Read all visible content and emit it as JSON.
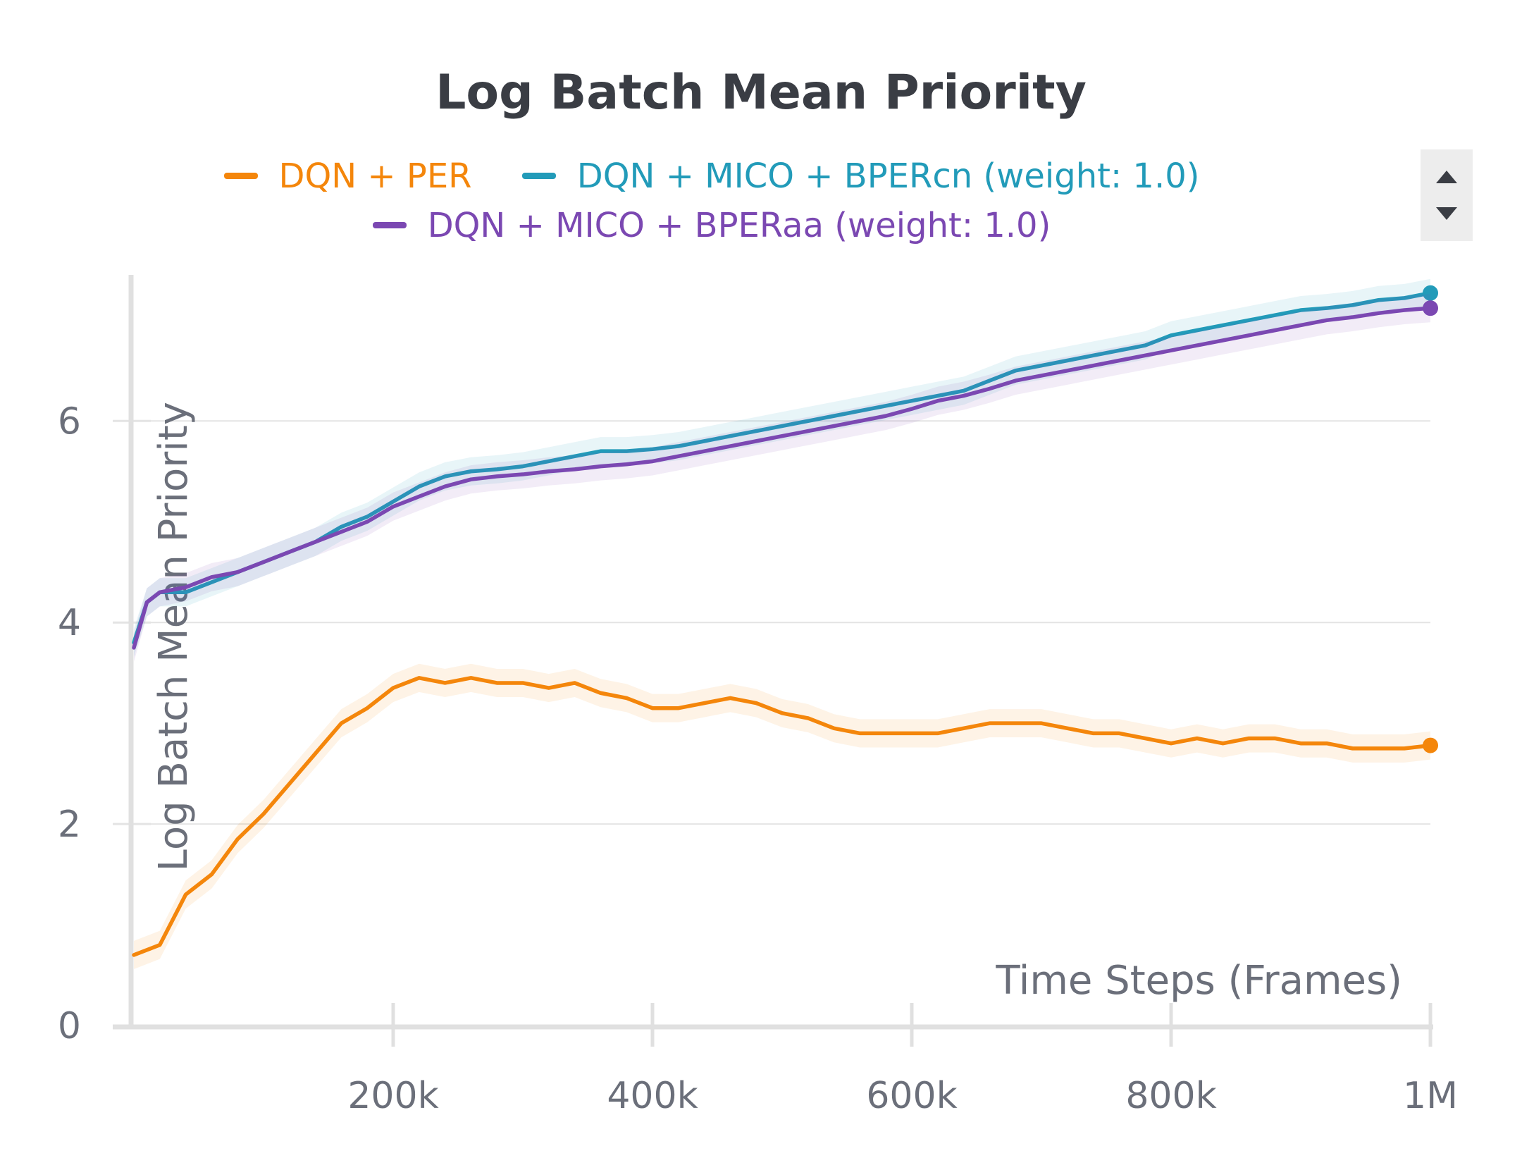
{
  "chart_data": {
    "type": "line",
    "title": "Log Batch Mean Priority",
    "xlabel": "Time Steps (Frames)",
    "ylabel": "Log Batch Mean Priority",
    "xlim": [
      0,
      1000000
    ],
    "ylim": [
      0,
      7.45
    ],
    "x_ticks": [
      {
        "value": 200000,
        "label": "200k"
      },
      {
        "value": 400000,
        "label": "400k"
      },
      {
        "value": 600000,
        "label": "600k"
      },
      {
        "value": 800000,
        "label": "800k"
      },
      {
        "value": 1000000,
        "label": "1M"
      }
    ],
    "y_ticks": [
      {
        "value": 0,
        "label": "0"
      },
      {
        "value": 2,
        "label": "2"
      },
      {
        "value": 4,
        "label": "4"
      },
      {
        "value": 6,
        "label": "6"
      }
    ],
    "grid": true,
    "legend_position": "top-center",
    "series": [
      {
        "name": "DQN + PER",
        "color": "#f4860b",
        "points": [
          [
            0,
            0.7
          ],
          [
            20000,
            0.8
          ],
          [
            40000,
            1.3
          ],
          [
            60000,
            1.5
          ],
          [
            80000,
            1.85
          ],
          [
            100000,
            2.1
          ],
          [
            120000,
            2.4
          ],
          [
            140000,
            2.7
          ],
          [
            160000,
            3.0
          ],
          [
            180000,
            3.15
          ],
          [
            200000,
            3.35
          ],
          [
            220000,
            3.45
          ],
          [
            240000,
            3.4
          ],
          [
            260000,
            3.45
          ],
          [
            280000,
            3.4
          ],
          [
            300000,
            3.4
          ],
          [
            320000,
            3.35
          ],
          [
            340000,
            3.4
          ],
          [
            360000,
            3.3
          ],
          [
            380000,
            3.25
          ],
          [
            400000,
            3.15
          ],
          [
            420000,
            3.15
          ],
          [
            440000,
            3.2
          ],
          [
            460000,
            3.25
          ],
          [
            480000,
            3.2
          ],
          [
            500000,
            3.1
          ],
          [
            520000,
            3.05
          ],
          [
            540000,
            2.95
          ],
          [
            560000,
            2.9
          ],
          [
            580000,
            2.9
          ],
          [
            600000,
            2.9
          ],
          [
            620000,
            2.9
          ],
          [
            640000,
            2.95
          ],
          [
            660000,
            3.0
          ],
          [
            680000,
            3.0
          ],
          [
            700000,
            3.0
          ],
          [
            720000,
            2.95
          ],
          [
            740000,
            2.9
          ],
          [
            760000,
            2.9
          ],
          [
            780000,
            2.85
          ],
          [
            800000,
            2.8
          ],
          [
            820000,
            2.85
          ],
          [
            840000,
            2.8
          ],
          [
            860000,
            2.85
          ],
          [
            880000,
            2.85
          ],
          [
            900000,
            2.8
          ],
          [
            920000,
            2.8
          ],
          [
            940000,
            2.75
          ],
          [
            960000,
            2.75
          ],
          [
            980000,
            2.75
          ],
          [
            1000000,
            2.78
          ]
        ]
      },
      {
        "name": "DQN + MICO + BPERcn (weight: 1.0)",
        "color": "#229bb9",
        "points": [
          [
            0,
            3.8
          ],
          [
            10000,
            4.2
          ],
          [
            20000,
            4.3
          ],
          [
            40000,
            4.3
          ],
          [
            60000,
            4.4
          ],
          [
            80000,
            4.5
          ],
          [
            100000,
            4.6
          ],
          [
            120000,
            4.7
          ],
          [
            140000,
            4.8
          ],
          [
            160000,
            4.95
          ],
          [
            180000,
            5.05
          ],
          [
            200000,
            5.2
          ],
          [
            220000,
            5.35
          ],
          [
            240000,
            5.45
          ],
          [
            260000,
            5.5
          ],
          [
            280000,
            5.52
          ],
          [
            300000,
            5.55
          ],
          [
            320000,
            5.6
          ],
          [
            340000,
            5.65
          ],
          [
            360000,
            5.7
          ],
          [
            380000,
            5.7
          ],
          [
            400000,
            5.72
          ],
          [
            420000,
            5.75
          ],
          [
            440000,
            5.8
          ],
          [
            460000,
            5.85
          ],
          [
            480000,
            5.9
          ],
          [
            500000,
            5.95
          ],
          [
            520000,
            6.0
          ],
          [
            540000,
            6.05
          ],
          [
            560000,
            6.1
          ],
          [
            580000,
            6.15
          ],
          [
            600000,
            6.2
          ],
          [
            620000,
            6.25
          ],
          [
            640000,
            6.3
          ],
          [
            660000,
            6.4
          ],
          [
            680000,
            6.5
          ],
          [
            700000,
            6.55
          ],
          [
            720000,
            6.6
          ],
          [
            740000,
            6.65
          ],
          [
            760000,
            6.7
          ],
          [
            780000,
            6.75
          ],
          [
            800000,
            6.85
          ],
          [
            820000,
            6.9
          ],
          [
            840000,
            6.95
          ],
          [
            860000,
            7.0
          ],
          [
            880000,
            7.05
          ],
          [
            900000,
            7.1
          ],
          [
            920000,
            7.12
          ],
          [
            940000,
            7.15
          ],
          [
            960000,
            7.2
          ],
          [
            980000,
            7.22
          ],
          [
            1000000,
            7.27
          ]
        ]
      },
      {
        "name": "DQN + MICO + BPERaa (weight: 1.0)",
        "color": "#7b48b2",
        "points": [
          [
            0,
            3.75
          ],
          [
            10000,
            4.2
          ],
          [
            20000,
            4.3
          ],
          [
            40000,
            4.35
          ],
          [
            60000,
            4.45
          ],
          [
            80000,
            4.5
          ],
          [
            100000,
            4.6
          ],
          [
            120000,
            4.7
          ],
          [
            140000,
            4.8
          ],
          [
            160000,
            4.9
          ],
          [
            180000,
            5.0
          ],
          [
            200000,
            5.15
          ],
          [
            220000,
            5.25
          ],
          [
            240000,
            5.35
          ],
          [
            260000,
            5.42
          ],
          [
            280000,
            5.45
          ],
          [
            300000,
            5.47
          ],
          [
            320000,
            5.5
          ],
          [
            340000,
            5.52
          ],
          [
            360000,
            5.55
          ],
          [
            380000,
            5.57
          ],
          [
            400000,
            5.6
          ],
          [
            420000,
            5.65
          ],
          [
            440000,
            5.7
          ],
          [
            460000,
            5.75
          ],
          [
            480000,
            5.8
          ],
          [
            500000,
            5.85
          ],
          [
            520000,
            5.9
          ],
          [
            540000,
            5.95
          ],
          [
            560000,
            6.0
          ],
          [
            580000,
            6.05
          ],
          [
            600000,
            6.12
          ],
          [
            620000,
            6.2
          ],
          [
            640000,
            6.25
          ],
          [
            660000,
            6.32
          ],
          [
            680000,
            6.4
          ],
          [
            700000,
            6.45
          ],
          [
            720000,
            6.5
          ],
          [
            740000,
            6.55
          ],
          [
            760000,
            6.6
          ],
          [
            780000,
            6.65
          ],
          [
            800000,
            6.7
          ],
          [
            820000,
            6.75
          ],
          [
            840000,
            6.8
          ],
          [
            860000,
            6.85
          ],
          [
            880000,
            6.9
          ],
          [
            900000,
            6.95
          ],
          [
            920000,
            7.0
          ],
          [
            940000,
            7.03
          ],
          [
            960000,
            7.07
          ],
          [
            980000,
            7.1
          ],
          [
            1000000,
            7.12
          ]
        ]
      }
    ]
  },
  "legend": {
    "items": [
      {
        "label": "DQN + PER",
        "color": "#f4860b"
      },
      {
        "label": "DQN + MICO + BPERcn (weight: 1.0)",
        "color": "#229bb9"
      },
      {
        "label": "DQN + MICO + BPERaa (weight: 1.0)",
        "color": "#7b48b2"
      }
    ],
    "scroll_up_icon": "triangle-up-icon",
    "scroll_down_icon": "triangle-down-icon"
  }
}
